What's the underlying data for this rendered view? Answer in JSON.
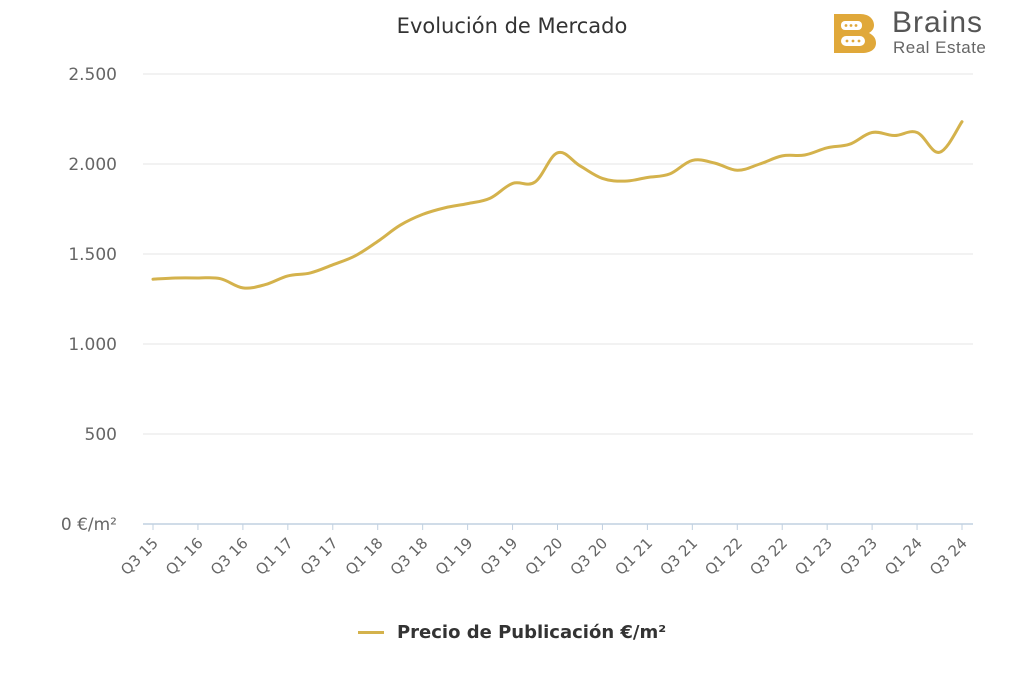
{
  "header": {
    "title": "Evolución de Mercado"
  },
  "logo": {
    "letter": "B",
    "name": "Brains",
    "tagline": "Real Estate",
    "color": "#E0A83A"
  },
  "colors": {
    "series": "#D4B24C",
    "grid": "#e6e6e6",
    "axis": "#c0d0e0",
    "text": "#666666"
  },
  "chart_data": {
    "type": "line",
    "title": "Evolución de Mercado",
    "xlabel": "",
    "ylabel": "",
    "ylim": [
      0,
      2500
    ],
    "y_ticks": [
      0,
      500,
      1000,
      1500,
      2000,
      2500
    ],
    "y_tick_labels": [
      "0 €/m²",
      "500",
      "1.000",
      "1.500",
      "2.000",
      "2.500"
    ],
    "categories": [
      "Q3 15",
      "Q4 15",
      "Q1 16",
      "Q2 16",
      "Q3 16",
      "Q4 16",
      "Q1 17",
      "Q2 17",
      "Q3 17",
      "Q4 17",
      "Q1 18",
      "Q2 18",
      "Q3 18",
      "Q4 18",
      "Q1 19",
      "Q2 19",
      "Q3 19",
      "Q4 19",
      "Q1 20",
      "Q2 20",
      "Q3 20",
      "Q4 20",
      "Q1 21",
      "Q2 21",
      "Q3 21",
      "Q4 21",
      "Q1 22",
      "Q2 22",
      "Q3 22",
      "Q4 22",
      "Q1 23",
      "Q2 23",
      "Q3 23",
      "Q4 23",
      "Q1 24",
      "Q2 24",
      "Q3 24"
    ],
    "x_tick_labels": [
      "Q3 15",
      "Q1 16",
      "Q3 16",
      "Q1 17",
      "Q3 17",
      "Q1 18",
      "Q3 18",
      "Q1 19",
      "Q3 19",
      "Q1 20",
      "Q3 20",
      "Q1 21",
      "Q3 21",
      "Q1 22",
      "Q3 22",
      "Q1 23",
      "Q3 23",
      "Q1 24",
      "Q3 24"
    ],
    "grid": true,
    "legend": "bottom-center",
    "series": [
      {
        "name": "Precio de Publicación €/m²",
        "values": [
          1360,
          1367,
          1367,
          1363,
          1312,
          1330,
          1378,
          1395,
          1440,
          1490,
          1570,
          1660,
          1720,
          1757,
          1780,
          1810,
          1892,
          1900,
          2062,
          1990,
          1920,
          1905,
          1925,
          1945,
          2020,
          2005,
          1965,
          2000,
          2045,
          2050,
          2090,
          2110,
          2175,
          2158,
          2175,
          2065,
          2235
        ]
      }
    ]
  },
  "legend": {
    "label": "Precio de Publicación €/m²"
  }
}
